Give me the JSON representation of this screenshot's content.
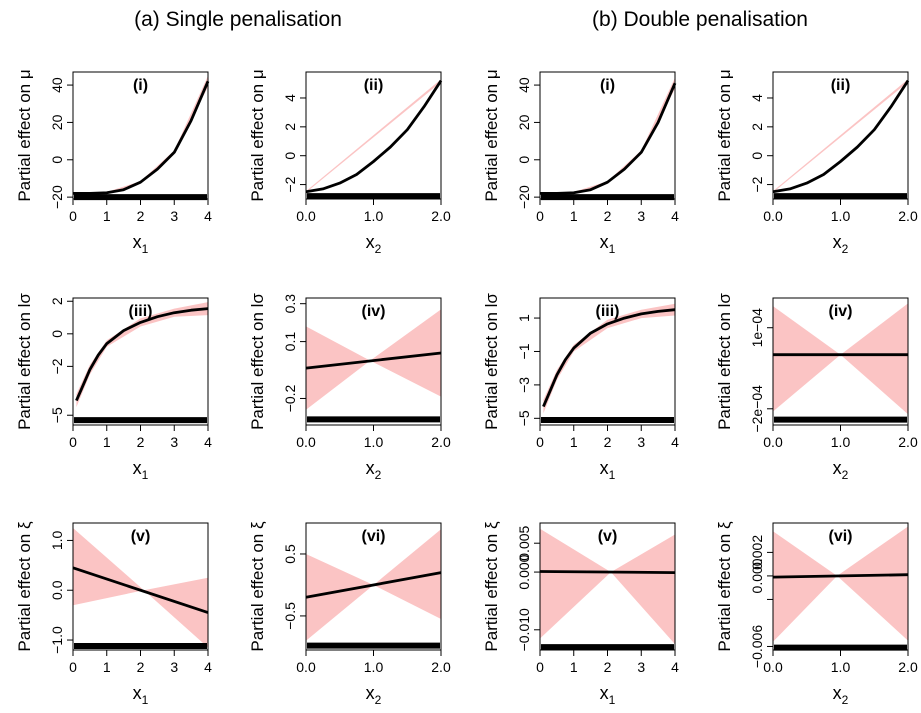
{
  "figure": {
    "titles": [
      "(a) Single penalisation",
      "(b) Double penalisation"
    ],
    "colors": {
      "band": "#fbc4c4",
      "line": "#000000",
      "rug": "#000000"
    }
  },
  "chart_data": [
    {
      "type": "line",
      "column": "a",
      "row": 1,
      "label": "(i)",
      "xvar": "x1",
      "ylabel": "Partial effect on μ",
      "xticks": [
        0,
        1,
        2,
        3,
        4
      ],
      "xtick_labels": [
        "0",
        "1",
        "2",
        "3",
        "4"
      ],
      "xlim": [
        0,
        4
      ],
      "yticks": [
        -20,
        0,
        20,
        40
      ],
      "ytick_labels": [
        "−20",
        "0",
        "20",
        "40"
      ],
      "ylim": [
        -21,
        47
      ],
      "line": [
        [
          0,
          -18
        ],
        [
          0.5,
          -18
        ],
        [
          1,
          -17.7
        ],
        [
          1.5,
          -16
        ],
        [
          2,
          -12
        ],
        [
          2.5,
          -5
        ],
        [
          3,
          4
        ],
        [
          3.5,
          21
        ],
        [
          4,
          42
        ]
      ],
      "band_upper": [
        [
          0,
          -17.5
        ],
        [
          1,
          -17.2
        ],
        [
          2,
          -11.5
        ],
        [
          3,
          5
        ],
        [
          4,
          45
        ]
      ],
      "band_lower": [
        [
          0,
          -18.5
        ],
        [
          1,
          -18.2
        ],
        [
          2,
          -12.5
        ],
        [
          3,
          3
        ],
        [
          4,
          39
        ]
      ],
      "rug_y": -20
    },
    {
      "type": "line",
      "column": "a",
      "row": 1,
      "label": "(ii)",
      "xvar": "x2",
      "ylabel": "Partial effect on μ",
      "xticks": [
        0,
        1,
        2
      ],
      "xtick_labels": [
        "0.0",
        "1.0",
        "2.0"
      ],
      "xlim": [
        0,
        2
      ],
      "yticks": [
        -2,
        0,
        2,
        4
      ],
      "ytick_labels": [
        "−2",
        "0",
        "2",
        "4"
      ],
      "ylim": [
        -3,
        5.8
      ],
      "line": [
        [
          0,
          -2.5
        ],
        [
          0.25,
          -2.3
        ],
        [
          0.5,
          -1.9
        ],
        [
          0.75,
          -1.3
        ],
        [
          1,
          -0.4
        ],
        [
          1.25,
          0.6
        ],
        [
          1.5,
          1.8
        ],
        [
          1.75,
          3.4
        ],
        [
          2,
          5.2
        ]
      ],
      "band_upper": [
        [
          0,
          -2.45
        ],
        [
          2,
          5.3
        ]
      ],
      "band_lower": [
        [
          0,
          -2.55
        ],
        [
          2,
          5.1
        ]
      ],
      "rug_y": -2.8
    },
    {
      "type": "line",
      "column": "b",
      "row": 1,
      "label": "(i)",
      "xvar": "x1",
      "ylabel": "Partial effect on μ",
      "xticks": [
        0,
        1,
        2,
        3,
        4
      ],
      "xtick_labels": [
        "0",
        "1",
        "2",
        "3",
        "4"
      ],
      "xlim": [
        0,
        4
      ],
      "yticks": [
        -20,
        0,
        20,
        40
      ],
      "ytick_labels": [
        "−20",
        "0",
        "20",
        "40"
      ],
      "ylim": [
        -21,
        47
      ],
      "line": [
        [
          0,
          -18
        ],
        [
          0.5,
          -18
        ],
        [
          1,
          -17.7
        ],
        [
          1.5,
          -16
        ],
        [
          2,
          -12
        ],
        [
          2.5,
          -5
        ],
        [
          3,
          4
        ],
        [
          3.5,
          20
        ],
        [
          4,
          41
        ]
      ],
      "band_upper": [
        [
          0,
          -17.5
        ],
        [
          1,
          -17.2
        ],
        [
          2,
          -11.5
        ],
        [
          3,
          5
        ],
        [
          4,
          44
        ]
      ],
      "band_lower": [
        [
          0,
          -18.5
        ],
        [
          1,
          -18.2
        ],
        [
          2,
          -12.5
        ],
        [
          3,
          3
        ],
        [
          4,
          38
        ]
      ],
      "rug_y": -20
    },
    {
      "type": "line",
      "column": "b",
      "row": 1,
      "label": "(ii)",
      "xvar": "x2",
      "ylabel": "Partial effect on μ",
      "xticks": [
        0,
        1,
        2
      ],
      "xtick_labels": [
        "0.0",
        "1.0",
        "2.0"
      ],
      "xlim": [
        0,
        2
      ],
      "yticks": [
        -2,
        0,
        2,
        4
      ],
      "ytick_labels": [
        "−2",
        "0",
        "2",
        "4"
      ],
      "ylim": [
        -3,
        5.8
      ],
      "line": [
        [
          0,
          -2.5
        ],
        [
          0.25,
          -2.3
        ],
        [
          0.5,
          -1.9
        ],
        [
          0.75,
          -1.3
        ],
        [
          1,
          -0.4
        ],
        [
          1.25,
          0.6
        ],
        [
          1.5,
          1.8
        ],
        [
          1.75,
          3.4
        ],
        [
          2,
          5.2
        ]
      ],
      "band_upper": [
        [
          0,
          -2.45
        ],
        [
          2,
          5.3
        ]
      ],
      "band_lower": [
        [
          0,
          -2.55
        ],
        [
          2,
          5.1
        ]
      ],
      "rug_y": -2.8
    },
    {
      "type": "line",
      "column": "a",
      "row": 2,
      "label": "(iii)",
      "xvar": "x1",
      "ylabel": "Partial effect on lσ",
      "xticks": [
        0,
        1,
        2,
        3,
        4
      ],
      "xtick_labels": [
        "0",
        "1",
        "2",
        "3",
        "4"
      ],
      "xlim": [
        0,
        4
      ],
      "yticks": [
        -5,
        -2,
        0,
        2
      ],
      "ytick_labels": [
        "−5",
        "−2",
        "0",
        "2"
      ],
      "ylim": [
        -5.6,
        2.2
      ],
      "line": [
        [
          0.1,
          -4.1
        ],
        [
          0.25,
          -3.4
        ],
        [
          0.5,
          -2.2
        ],
        [
          0.75,
          -1.3
        ],
        [
          1,
          -0.6
        ],
        [
          1.5,
          0.2
        ],
        [
          2,
          0.7
        ],
        [
          2.5,
          1.05
        ],
        [
          3,
          1.3
        ],
        [
          3.5,
          1.45
        ],
        [
          4,
          1.55
        ]
      ],
      "band_upper": [
        [
          0.1,
          -3.7
        ],
        [
          0.5,
          -1.9
        ],
        [
          1,
          -0.4
        ],
        [
          2,
          0.95
        ],
        [
          3,
          1.55
        ],
        [
          4,
          1.95
        ]
      ],
      "band_lower": [
        [
          0.1,
          -4.5
        ],
        [
          0.5,
          -2.5
        ],
        [
          1,
          -0.8
        ],
        [
          2,
          0.45
        ],
        [
          3,
          1.05
        ],
        [
          4,
          1.15
        ]
      ],
      "rug_y": -5.3
    },
    {
      "type": "line",
      "column": "a",
      "row": 2,
      "label": "(iv)",
      "xvar": "x2",
      "ylabel": "Partial effect on lσ",
      "xticks": [
        0,
        1,
        2
      ],
      "xtick_labels": [
        "0.0",
        "1.0",
        "2.0"
      ],
      "xlim": [
        0,
        2
      ],
      "yticks": [
        -0.2,
        0.1,
        0.3
      ],
      "ytick_labels": [
        "−0.2",
        "0.1",
        "0.3"
      ],
      "ylim": [
        -0.34,
        0.33
      ],
      "line": [
        [
          0,
          -0.04
        ],
        [
          2,
          0.04
        ]
      ],
      "band_upper": [
        [
          0,
          0.18
        ],
        [
          0.95,
          0
        ],
        [
          2,
          0.27
        ]
      ],
      "band_lower": [
        [
          0,
          -0.26
        ],
        [
          0.95,
          0
        ],
        [
          2,
          -0.19
        ]
      ],
      "rug_y": -0.31
    },
    {
      "type": "line",
      "column": "b",
      "row": 2,
      "label": "(iii)",
      "xvar": "x1",
      "ylabel": "Partial effect on lσ",
      "xticks": [
        0,
        1,
        2,
        3,
        4
      ],
      "xtick_labels": [
        "0",
        "1",
        "2",
        "3",
        "4"
      ],
      "xlim": [
        0,
        4
      ],
      "yticks": [
        -5,
        -3,
        -1,
        1
      ],
      "ytick_labels": [
        "−5",
        "−3",
        "−1",
        "1"
      ],
      "ylim": [
        -5.4,
        2.2
      ],
      "line": [
        [
          0.1,
          -4.3
        ],
        [
          0.25,
          -3.6
        ],
        [
          0.5,
          -2.4
        ],
        [
          0.75,
          -1.5
        ],
        [
          1,
          -0.8
        ],
        [
          1.5,
          0.1
        ],
        [
          2,
          0.65
        ],
        [
          2.5,
          1.0
        ],
        [
          3,
          1.25
        ],
        [
          3.5,
          1.4
        ],
        [
          4,
          1.5
        ]
      ],
      "band_upper": [
        [
          0.1,
          -3.9
        ],
        [
          0.5,
          -2.1
        ],
        [
          1,
          -0.6
        ],
        [
          2,
          0.9
        ],
        [
          3,
          1.5
        ],
        [
          4,
          1.85
        ]
      ],
      "band_lower": [
        [
          0.1,
          -4.7
        ],
        [
          0.5,
          -2.7
        ],
        [
          1,
          -1.0
        ],
        [
          2,
          0.4
        ],
        [
          3,
          1.0
        ],
        [
          4,
          1.15
        ]
      ],
      "rug_y": -5.1
    },
    {
      "type": "line",
      "column": "b",
      "row": 2,
      "label": "(iv)",
      "xvar": "x2",
      "ylabel": "Partial effect on lσ",
      "xticks": [
        0,
        1,
        2
      ],
      "xtick_labels": [
        "0.0",
        "1.0",
        "2.0"
      ],
      "xlim": [
        0,
        2
      ],
      "yticks": [
        -0.0002,
        0.0001
      ],
      "ytick_labels": [
        "−2e−04",
        "1e−04"
      ],
      "ylim": [
        -0.00026,
        0.00021
      ],
      "line": [
        [
          0,
          0
        ],
        [
          2,
          0
        ]
      ],
      "band_upper": [
        [
          0,
          0.00018
        ],
        [
          1,
          0
        ],
        [
          2,
          0.00019
        ]
      ],
      "band_lower": [
        [
          0,
          -0.00021
        ],
        [
          1,
          0
        ],
        [
          2,
          -0.00022
        ]
      ],
      "rug_y": -0.00024
    },
    {
      "type": "line",
      "column": "a",
      "row": 3,
      "label": "(v)",
      "xvar": "x1",
      "ylabel": "Partial effect on ξ",
      "xticks": [
        0,
        1,
        2,
        3,
        4
      ],
      "xtick_labels": [
        "0",
        "1",
        "2",
        "3",
        "4"
      ],
      "xlim": [
        0,
        4
      ],
      "yticks": [
        -1,
        0,
        1
      ],
      "ytick_labels": [
        "−1.0",
        "0.0",
        "1.0"
      ],
      "ylim": [
        -1.2,
        1.35
      ],
      "line": [
        [
          0,
          0.45
        ],
        [
          4,
          -0.45
        ]
      ],
      "band_upper": [
        [
          0,
          1.25
        ],
        [
          2.1,
          0
        ],
        [
          4,
          0.25
        ]
      ],
      "band_lower": [
        [
          0,
          -0.3
        ],
        [
          2.1,
          0
        ],
        [
          4,
          -1.15
        ]
      ],
      "rug_y": -1.12
    },
    {
      "type": "line",
      "column": "a",
      "row": 3,
      "label": "(vi)",
      "xvar": "x2",
      "ylabel": "Partial effect on ξ",
      "xticks": [
        0,
        1,
        2
      ],
      "xtick_labels": [
        "0.0",
        "1.0",
        "2.0"
      ],
      "xlim": [
        0,
        2
      ],
      "yticks": [
        -0.5,
        0.5
      ],
      "ytick_labels": [
        "−0.5",
        "0.5"
      ],
      "ylim": [
        -1.05,
        1.0
      ],
      "line": [
        [
          0,
          -0.2
        ],
        [
          2,
          0.2
        ]
      ],
      "band_upper": [
        [
          0,
          0.5
        ],
        [
          1,
          0
        ],
        [
          2,
          0.9
        ]
      ],
      "band_lower": [
        [
          0,
          -0.9
        ],
        [
          1,
          0
        ],
        [
          2,
          -0.55
        ]
      ],
      "rug_y": -0.98
    },
    {
      "type": "line",
      "column": "b",
      "row": 3,
      "label": "(v)",
      "xvar": "x1",
      "ylabel": "Partial effect on ξ",
      "xticks": [
        0,
        1,
        2,
        3,
        4
      ],
      "xtick_labels": [
        "0",
        "1",
        "2",
        "3",
        "4"
      ],
      "xlim": [
        0,
        4
      ],
      "yticks": [
        -0.01,
        0,
        0.005
      ],
      "ytick_labels": [
        "−0.010",
        "0.000",
        "0.005"
      ],
      "ylim": [
        -0.0135,
        0.0085
      ],
      "line": [
        [
          0,
          0.0001
        ],
        [
          4,
          -0.0001
        ]
      ],
      "band_upper": [
        [
          0,
          0.0075
        ],
        [
          2.1,
          0
        ],
        [
          4,
          0.0065
        ]
      ],
      "band_lower": [
        [
          0,
          -0.0115
        ],
        [
          2.1,
          0
        ],
        [
          4,
          -0.0125
        ]
      ],
      "rug_y": -0.013
    },
    {
      "type": "line",
      "column": "b",
      "row": 3,
      "label": "(vi)",
      "xvar": "x2",
      "ylabel": "Partial effect on ξ",
      "xticks": [
        0,
        1,
        2
      ],
      "xtick_labels": [
        "0.0",
        "1.0",
        "2.0"
      ],
      "xlim": [
        0,
        2
      ],
      "yticks": [
        -0.006,
        -0.002,
        0,
        0.002
      ],
      "ytick_labels": [
        "−0.006",
        "",
        "0.000",
        "0.002"
      ],
      "ylim": [
        -0.0063,
        0.0045
      ],
      "line": [
        [
          0,
          -0.0001
        ],
        [
          2,
          0.0001
        ]
      ],
      "band_upper": [
        [
          0,
          0.0038
        ],
        [
          0.95,
          0
        ],
        [
          2,
          0.0042
        ]
      ],
      "band_lower": [
        [
          0,
          -0.0056
        ],
        [
          0.95,
          0
        ],
        [
          2,
          -0.0055
        ]
      ],
      "rug_y": -0.0061
    }
  ]
}
